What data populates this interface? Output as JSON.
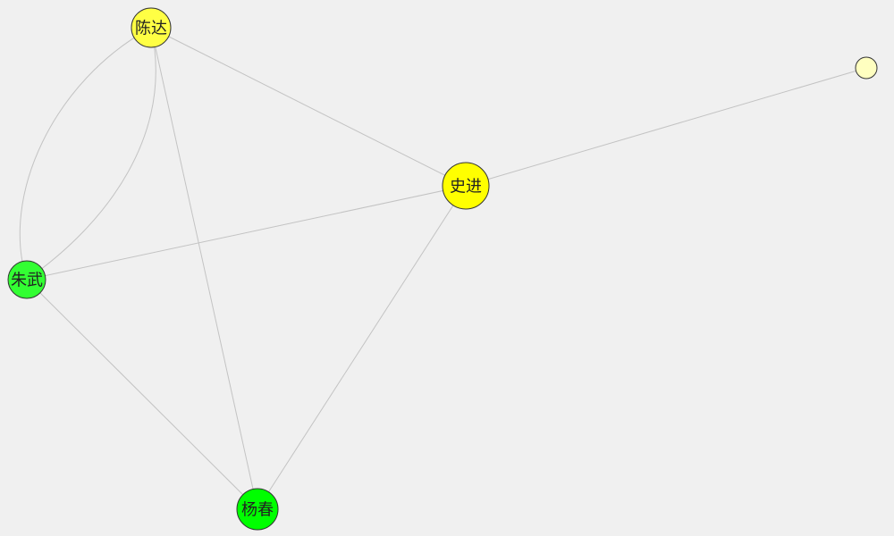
{
  "graph": {
    "background": "#f0f0f0",
    "edge_color": "#c3c3c3",
    "node_border_color": "#333333",
    "nodes": [
      {
        "id": "chenda",
        "name": "node-chenda",
        "label": "陈达",
        "color": "#ffff44"
      },
      {
        "id": "shijin",
        "name": "node-shijin",
        "label": "史进",
        "color": "#ffff00"
      },
      {
        "id": "zhuwu",
        "name": "node-zhuwu",
        "label": "朱武",
        "color": "#33ff33"
      },
      {
        "id": "yangchun",
        "name": "node-yangchun",
        "label": "杨春",
        "color": "#00ff00"
      },
      {
        "id": "unlabeled",
        "name": "node-unlabeled",
        "label": "",
        "color": "#ffffc0"
      }
    ],
    "edges": [
      {
        "name": "edge-chenda-shijin",
        "source": "chenda",
        "target": "shijin"
      },
      {
        "name": "edge-chenda-yangchun",
        "source": "chenda",
        "target": "yangchun"
      },
      {
        "name": "edge-chenda-zhuwu-outer",
        "source": "chenda",
        "target": "zhuwu"
      },
      {
        "name": "edge-chenda-zhuwu-inner",
        "source": "chenda",
        "target": "zhuwu"
      },
      {
        "name": "edge-shijin-unlabeled",
        "source": "shijin",
        "target": "unlabeled"
      },
      {
        "name": "edge-shijin-zhuwu",
        "source": "shijin",
        "target": "zhuwu"
      },
      {
        "name": "edge-shijin-yangchun",
        "source": "shijin",
        "target": "yangchun"
      },
      {
        "name": "edge-zhuwu-yangchun",
        "source": "zhuwu",
        "target": "yangchun"
      }
    ]
  }
}
